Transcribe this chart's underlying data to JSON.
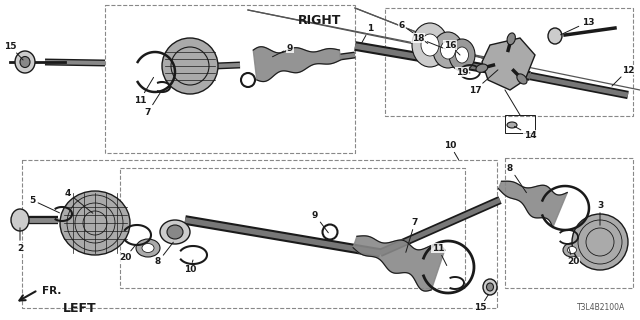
{
  "bg_color": "#ffffff",
  "line_color": "#000000",
  "right_label": "RIGHT",
  "left_label": "LEFT",
  "fr_label": "FR.",
  "diagram_code": "T3L4B2100A",
  "fig_w": 6.4,
  "fig_h": 3.2,
  "dpi": 100
}
